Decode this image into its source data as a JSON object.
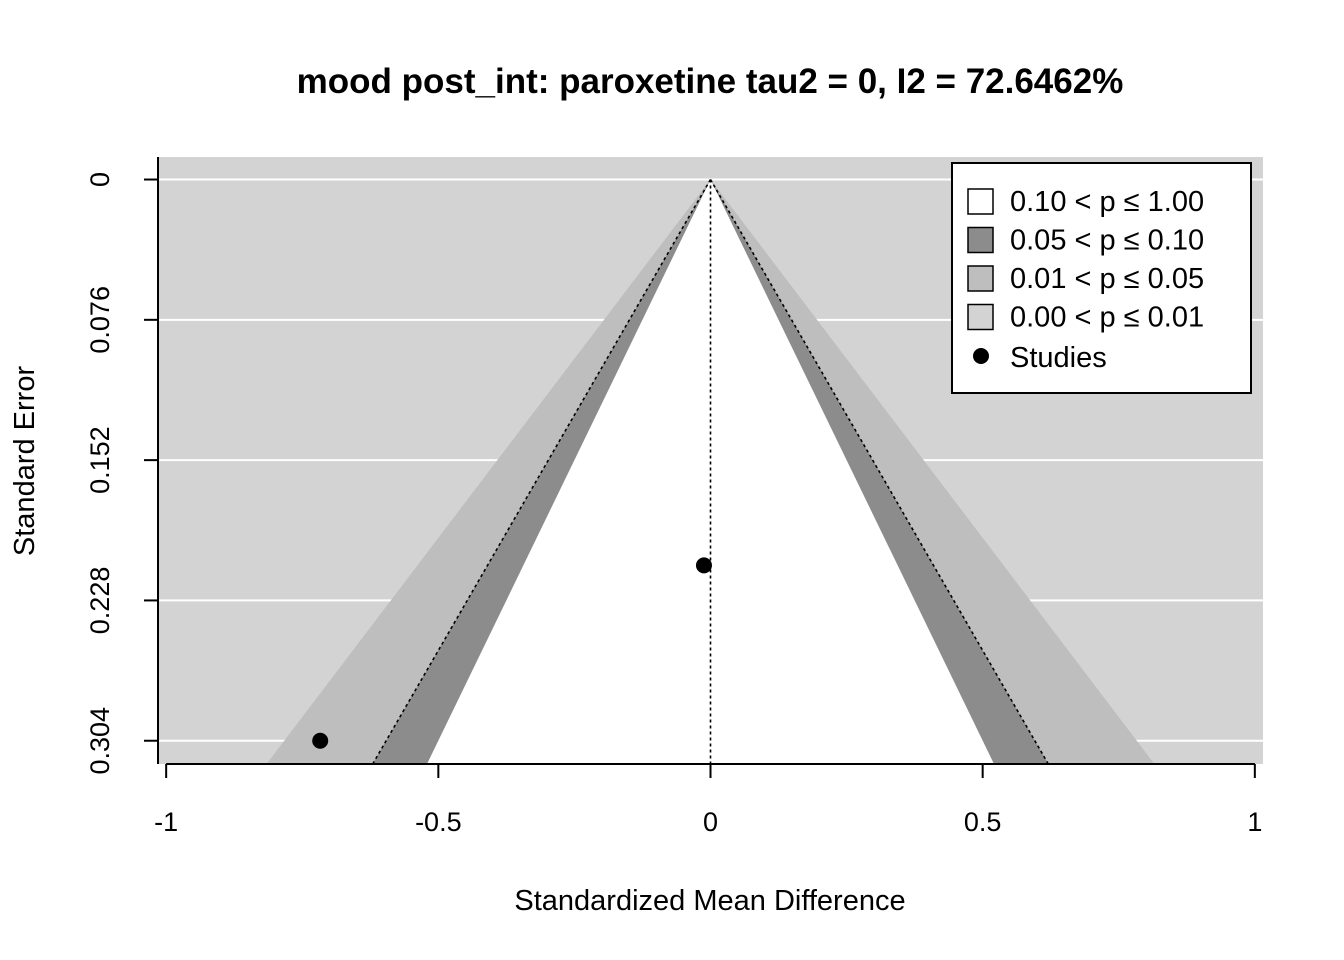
{
  "chart_data": {
    "type": "scatter",
    "subtype": "contour-enhanced funnel plot",
    "title": "mood post_int: paroxetine tau2 = 0, I2 = 72.6462%",
    "xlabel": "Standardized Mean Difference",
    "ylabel": "Standard Error",
    "xlim": [
      -1.015,
      1.015
    ],
    "ylim": [
      0.3166,
      -0.0122
    ],
    "y_reversed": true,
    "x_ticks": [
      "-1",
      "-0.5",
      "0",
      "0.5",
      "1"
    ],
    "x_tick_values": [
      -1,
      -0.5,
      0,
      0.5,
      1
    ],
    "y_ticks": [
      "0",
      "0.076",
      "0.152",
      "0.228",
      "0.304"
    ],
    "y_tick_values": [
      0,
      0.076,
      0.152,
      0.228,
      0.304
    ],
    "grid": "horizontal",
    "reference_line_x": 0,
    "contours": [
      {
        "label": "0.10 < p ≤ 1.00",
        "z": 1.645,
        "color": "#ffffff"
      },
      {
        "label": "0.05 < p ≤ 0.10",
        "z": 1.96,
        "color": "#8c8c8c"
      },
      {
        "label": "0.01 < p ≤ 0.05",
        "z": 2.576,
        "color": "#bebebe"
      },
      {
        "label": "0.00 < p ≤ 0.01",
        "z": null,
        "color": "#d3d3d3"
      }
    ],
    "studies": {
      "label": "Studies",
      "points": [
        {
          "x": -0.012,
          "y": 0.209
        },
        {
          "x": -0.717,
          "y": 0.304
        }
      ]
    },
    "legend_position": "top-right"
  }
}
